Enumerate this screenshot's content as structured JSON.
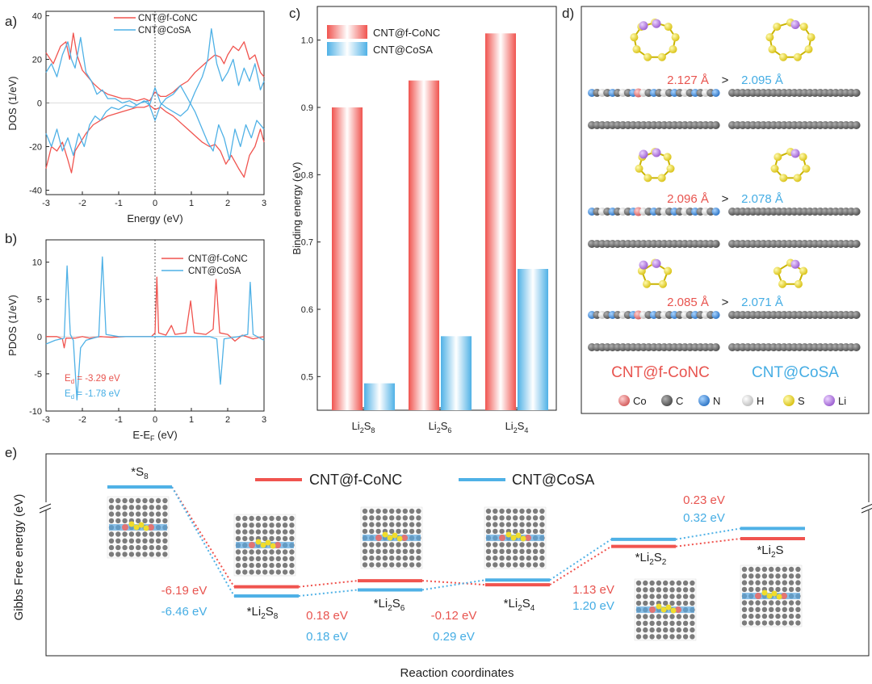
{
  "colors": {
    "red": "#f0544f",
    "blue": "#4fb1e6",
    "axis": "#222222",
    "text_red": "#e8544f",
    "text_blue": "#3aa8e2"
  },
  "panels": {
    "a": "a)",
    "b": "b)",
    "c": "c)",
    "d": "d)",
    "e": "e)"
  },
  "chart_data": [
    {
      "id": "a",
      "type": "line",
      "xlabel": "Energy (eV)",
      "ylabel": "DOS (1/eV)",
      "xlim": [
        -3,
        3
      ],
      "ylim": [
        -42,
        42
      ],
      "xticks": [
        -3,
        -2,
        -1,
        0,
        1,
        2,
        3
      ],
      "yticks": [
        -40,
        -20,
        0,
        20,
        40
      ],
      "legend": [
        "CNT@f-CoNC",
        "CNT@CoSA"
      ],
      "series": [
        {
          "name": "CNT@f-CoNC",
          "up": [
            [
              -3,
              23
            ],
            [
              -2.8,
              18
            ],
            [
              -2.6,
              26
            ],
            [
              -2.45,
              28
            ],
            [
              -2.35,
              20
            ],
            [
              -2.25,
              32
            ],
            [
              -2.15,
              22
            ],
            [
              -2.0,
              15
            ],
            [
              -1.85,
              12
            ],
            [
              -1.7,
              9
            ],
            [
              -1.5,
              6
            ],
            [
              -1.3,
              4
            ],
            [
              -1.1,
              3
            ],
            [
              -0.9,
              2
            ],
            [
              -0.7,
              2
            ],
            [
              -0.5,
              1
            ],
            [
              -0.3,
              2
            ],
            [
              -0.15,
              1
            ],
            [
              0,
              5
            ],
            [
              0.15,
              3
            ],
            [
              0.3,
              3
            ],
            [
              0.5,
              5
            ],
            [
              0.7,
              8
            ],
            [
              0.9,
              10
            ],
            [
              1.1,
              14
            ],
            [
              1.3,
              17
            ],
            [
              1.5,
              20
            ],
            [
              1.65,
              22
            ],
            [
              1.8,
              21
            ],
            [
              1.9,
              18
            ],
            [
              2.0,
              22
            ],
            [
              2.15,
              26
            ],
            [
              2.3,
              24
            ],
            [
              2.45,
              28
            ],
            [
              2.6,
              20
            ],
            [
              2.75,
              22
            ],
            [
              2.9,
              14
            ],
            [
              3,
              12
            ]
          ],
          "down": [
            [
              -3,
              -30
            ],
            [
              -2.85,
              -20
            ],
            [
              -2.7,
              -22
            ],
            [
              -2.55,
              -18
            ],
            [
              -2.4,
              -26
            ],
            [
              -2.3,
              -32
            ],
            [
              -2.2,
              -22
            ],
            [
              -2.05,
              -18
            ],
            [
              -1.9,
              -14
            ],
            [
              -1.7,
              -10
            ],
            [
              -1.5,
              -8
            ],
            [
              -1.3,
              -6
            ],
            [
              -1.1,
              -5
            ],
            [
              -0.9,
              -4
            ],
            [
              -0.7,
              -3
            ],
            [
              -0.5,
              -2
            ],
            [
              -0.3,
              -2
            ],
            [
              -0.15,
              -1
            ],
            [
              0,
              -3
            ],
            [
              0.15,
              -2
            ],
            [
              0.3,
              -4
            ],
            [
              0.5,
              -6
            ],
            [
              0.7,
              -9
            ],
            [
              0.9,
              -12
            ],
            [
              1.1,
              -15
            ],
            [
              1.3,
              -18
            ],
            [
              1.5,
              -20
            ],
            [
              1.65,
              -19
            ],
            [
              1.8,
              -22
            ],
            [
              1.95,
              -28
            ],
            [
              2.1,
              -24
            ],
            [
              2.3,
              -30
            ],
            [
              2.45,
              -34
            ],
            [
              2.6,
              -24
            ],
            [
              2.75,
              -20
            ],
            [
              2.9,
              -12
            ],
            [
              3,
              -18
            ]
          ]
        },
        {
          "name": "CNT@CoSA",
          "up": [
            [
              -3,
              14
            ],
            [
              -2.85,
              18
            ],
            [
              -2.7,
              12
            ],
            [
              -2.55,
              22
            ],
            [
              -2.4,
              28
            ],
            [
              -2.3,
              20
            ],
            [
              -2.2,
              16
            ],
            [
              -2.05,
              30
            ],
            [
              -1.9,
              14
            ],
            [
              -1.75,
              10
            ],
            [
              -1.6,
              4
            ],
            [
              -1.45,
              6
            ],
            [
              -1.3,
              2
            ],
            [
              -1.1,
              2
            ],
            [
              -0.9,
              0
            ],
            [
              -0.7,
              1
            ],
            [
              -0.5,
              -1
            ],
            [
              -0.3,
              1
            ],
            [
              -0.15,
              -1
            ],
            [
              0,
              7
            ],
            [
              0.15,
              0
            ],
            [
              0.3,
              -2
            ],
            [
              0.5,
              -4
            ],
            [
              0.7,
              -6
            ],
            [
              0.9,
              -3
            ],
            [
              1.1,
              5
            ],
            [
              1.3,
              12
            ],
            [
              1.45,
              20
            ],
            [
              1.55,
              34
            ],
            [
              1.7,
              18
            ],
            [
              1.85,
              10
            ],
            [
              2.0,
              14
            ],
            [
              2.15,
              20
            ],
            [
              2.3,
              8
            ],
            [
              2.45,
              16
            ],
            [
              2.6,
              10
            ],
            [
              2.75,
              18
            ],
            [
              2.9,
              6
            ],
            [
              3,
              10
            ]
          ],
          "down": [
            [
              -3,
              -14
            ],
            [
              -2.85,
              -20
            ],
            [
              -2.7,
              -12
            ],
            [
              -2.55,
              -22
            ],
            [
              -2.4,
              -16
            ],
            [
              -2.25,
              -24
            ],
            [
              -2.1,
              -14
            ],
            [
              -1.95,
              -20
            ],
            [
              -1.8,
              -10
            ],
            [
              -1.65,
              -6
            ],
            [
              -1.5,
              -8
            ],
            [
              -1.35,
              -4
            ],
            [
              -1.2,
              -2
            ],
            [
              -1.0,
              -3
            ],
            [
              -0.8,
              -1
            ],
            [
              -0.6,
              -2
            ],
            [
              -0.4,
              0
            ],
            [
              -0.2,
              1
            ],
            [
              0,
              -8
            ],
            [
              0.15,
              -1
            ],
            [
              0.3,
              2
            ],
            [
              0.5,
              4
            ],
            [
              0.7,
              8
            ],
            [
              0.9,
              2
            ],
            [
              1.1,
              -4
            ],
            [
              1.3,
              -12
            ],
            [
              1.45,
              -18
            ],
            [
              1.6,
              -22
            ],
            [
              1.75,
              -10
            ],
            [
              1.9,
              -16
            ],
            [
              2.05,
              -26
            ],
            [
              2.2,
              -12
            ],
            [
              2.35,
              -20
            ],
            [
              2.5,
              -10
            ],
            [
              2.65,
              -16
            ],
            [
              2.8,
              -8
            ],
            [
              3,
              -12
            ]
          ]
        }
      ]
    },
    {
      "id": "b",
      "type": "line",
      "xlabel": "E-E",
      "xlabel_sub": "F",
      "xlabel_unit": " (eV)",
      "ylabel": "PDOS (1/eV)",
      "xlim": [
        -3,
        3
      ],
      "ylim": [
        -10,
        13
      ],
      "xticks": [
        -3,
        -2,
        -1,
        0,
        1,
        2,
        3
      ],
      "yticks": [
        -10,
        -5,
        0,
        5,
        10
      ],
      "legend": [
        "CNT@f-CoNC",
        "CNT@CoSA"
      ],
      "annotations": [
        {
          "label": "E",
          "sub": "d",
          "rest": " = -3.29 eV",
          "color": "red"
        },
        {
          "label": "E",
          "sub": "d",
          "rest": " = -1.78 eV",
          "color": "blue"
        }
      ],
      "series": [
        {
          "name": "CNT@f-CoNC",
          "points": [
            [
              -3,
              0
            ],
            [
              -2.7,
              0
            ],
            [
              -2.55,
              -0.3
            ],
            [
              -2.5,
              -1.5
            ],
            [
              -2.45,
              -0.2
            ],
            [
              -2.2,
              -0.2
            ],
            [
              -2.0,
              0
            ],
            [
              -1.8,
              -0.2
            ],
            [
              -1.5,
              0
            ],
            [
              -1.2,
              -0.1
            ],
            [
              -0.8,
              0
            ],
            [
              -0.4,
              0
            ],
            [
              -0.1,
              0
            ],
            [
              0,
              0.5
            ],
            [
              0.05,
              8
            ],
            [
              0.1,
              0.5
            ],
            [
              0.3,
              0.2
            ],
            [
              0.45,
              1.5
            ],
            [
              0.55,
              0.3
            ],
            [
              0.85,
              0.5
            ],
            [
              0.98,
              4.8
            ],
            [
              1.08,
              0.5
            ],
            [
              1.4,
              0.3
            ],
            [
              1.6,
              1
            ],
            [
              1.68,
              7.7
            ],
            [
              1.78,
              0.5
            ],
            [
              2.0,
              0.3
            ],
            [
              2.2,
              -0.6
            ],
            [
              2.4,
              0.2
            ],
            [
              2.7,
              -0.3
            ],
            [
              3,
              0
            ]
          ]
        },
        {
          "name": "CNT@CoSA",
          "points": [
            [
              -3,
              -1
            ],
            [
              -2.75,
              -0.5
            ],
            [
              -2.5,
              -0.2
            ],
            [
              -2.42,
              9.5
            ],
            [
              -2.33,
              0.3
            ],
            [
              -2.25,
              -0.5
            ],
            [
              -2.15,
              -8.5
            ],
            [
              -2.05,
              -1.5
            ],
            [
              -1.9,
              -0.5
            ],
            [
              -1.55,
              0
            ],
            [
              -1.45,
              10.7
            ],
            [
              -1.35,
              0.3
            ],
            [
              -1.0,
              0
            ],
            [
              -0.5,
              0
            ],
            [
              0,
              0
            ],
            [
              0.5,
              0
            ],
            [
              1.0,
              0
            ],
            [
              1.5,
              0
            ],
            [
              1.7,
              -0.3
            ],
            [
              1.8,
              -6.4
            ],
            [
              1.9,
              -0.3
            ],
            [
              2.3,
              0
            ],
            [
              2.55,
              0.3
            ],
            [
              2.62,
              7.3
            ],
            [
              2.7,
              0.3
            ],
            [
              3,
              -0.5
            ]
          ]
        }
      ]
    },
    {
      "id": "c",
      "type": "bar",
      "ylabel": "Binding energy (eV)",
      "ylim": [
        0.45,
        1.05
      ],
      "yticks": [
        0.5,
        0.6,
        0.7,
        0.8,
        0.9,
        1.0
      ],
      "categories": [
        {
          "base": "Li",
          "sub1": "2",
          "mid": "S",
          "sub2": "8"
        },
        {
          "base": "Li",
          "sub1": "2",
          "mid": "S",
          "sub2": "6"
        },
        {
          "base": "Li",
          "sub1": "2",
          "mid": "S",
          "sub2": "4"
        }
      ],
      "legend": [
        "CNT@f-CoNC",
        "CNT@CoSA"
      ],
      "series": [
        {
          "name": "CNT@f-CoNC",
          "values": [
            0.9,
            0.94,
            1.01
          ]
        },
        {
          "name": "CNT@CoSA",
          "values": [
            0.49,
            0.56,
            0.66
          ]
        }
      ]
    },
    {
      "id": "e",
      "type": "line",
      "title": "",
      "xlabel": "Reaction coordinates",
      "ylabel": "Gibbs Free energy (eV)",
      "legend": [
        "CNT@f-CoNC",
        "CNT@CoSA"
      ],
      "states": [
        {
          "label": "*S",
          "sub": "8"
        },
        {
          "label": "*Li",
          "sub": "2",
          "mid": "S",
          "sub2": "8"
        },
        {
          "label": "*Li",
          "sub": "2",
          "mid": "S",
          "sub2": "6"
        },
        {
          "label": "*Li",
          "sub": "2",
          "mid": "S",
          "sub2": "4"
        },
        {
          "label": "*Li",
          "sub": "2",
          "mid": "S",
          "sub2": "2"
        },
        {
          "label": "*Li",
          "sub": "2",
          "mid": "S",
          "sub2": ""
        }
      ],
      "series": [
        {
          "name": "CNT@f-CoNC",
          "energies": [
            0.0,
            -6.19,
            -6.01,
            -6.13,
            -5.0,
            -4.77
          ]
        },
        {
          "name": "CNT@CoSA",
          "energies": [
            0.0,
            -6.46,
            -6.28,
            -5.99,
            -4.79,
            -4.47
          ]
        }
      ],
      "step_labels": [
        {
          "red": "-6.19 eV",
          "blue": "-6.46 eV"
        },
        {
          "red": "0.18 eV",
          "blue": "0.18 eV"
        },
        {
          "red": "-0.12 eV",
          "blue": "0.29 eV"
        },
        {
          "red": "1.13 eV",
          "blue": "1.20 eV"
        },
        {
          "red": "0.23 eV",
          "blue": "0.32 eV"
        }
      ]
    }
  ],
  "structures": {
    "distances": [
      {
        "red": "2.127 Å",
        "blue": "2.095 Å"
      },
      {
        "red": "2.096 Å",
        "blue": "2.078 Å"
      },
      {
        "red": "2.085 Å",
        "blue": "2.071 Å"
      }
    ],
    "compare_symbol": ">",
    "labels": [
      "CNT@f-CoNC",
      "CNT@CoSA"
    ],
    "atom_legend": [
      {
        "symbol": "Co",
        "color": "#e06b6b"
      },
      {
        "symbol": "C",
        "color": "#6b6b6b"
      },
      {
        "symbol": "N",
        "color": "#3d8fd8"
      },
      {
        "symbol": "H",
        "color": "#e8e8e8"
      },
      {
        "symbol": "S",
        "color": "#f0dc2c"
      },
      {
        "symbol": "Li",
        "color": "#b57ee0"
      }
    ]
  }
}
